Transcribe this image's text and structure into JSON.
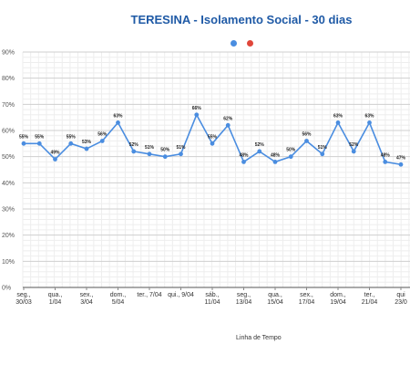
{
  "chart_data": {
    "type": "line",
    "title": "TERESINA - Isolamento Social - 30 dias",
    "xlabel": "Linha de Tempo",
    "ylabel": "",
    "ylim": [
      0,
      90
    ],
    "yticks": [
      "0%",
      "10%",
      "20%",
      "30%",
      "40%",
      "50%",
      "60%",
      "70%",
      "80%",
      "90%"
    ],
    "grid": true,
    "legend_position": "top",
    "series": [
      {
        "color": "#4a8de0",
        "values": [
          55,
          55,
          49,
          55,
          53,
          56,
          63,
          52,
          51,
          50,
          51,
          66,
          55,
          62,
          48,
          52,
          48,
          50,
          56,
          51,
          63,
          52,
          63,
          48,
          47
        ],
        "labels": [
          "55%",
          "55%",
          "49%",
          "55%",
          "53%",
          "56%",
          "63%",
          "52%",
          "51%",
          "50%",
          "51%",
          "66%",
          "55%",
          "62%",
          "48%",
          "52%",
          "48%",
          "50%",
          "56%",
          "51%",
          "63%",
          "52%",
          "63%",
          "48%",
          "47%"
        ]
      }
    ],
    "legend_colors": [
      "#4a8de0",
      "#e0463a"
    ],
    "x_tick_labels": [
      {
        "index": 0,
        "line1": "seg.,",
        "line2": "30/03"
      },
      {
        "index": 2,
        "line1": "qua.,",
        "line2": "1/04"
      },
      {
        "index": 4,
        "line1": "sex.,",
        "line2": "3/04"
      },
      {
        "index": 6,
        "line1": "dom.,",
        "line2": "5/04"
      },
      {
        "index": 8,
        "line1": "ter., 7/04",
        "line2": ""
      },
      {
        "index": 10,
        "line1": "qui., 9/04",
        "line2": ""
      },
      {
        "index": 12,
        "line1": "sáb.,",
        "line2": "11/04"
      },
      {
        "index": 14,
        "line1": "seg.,",
        "line2": "13/04"
      },
      {
        "index": 16,
        "line1": "qua.,",
        "line2": "15/04"
      },
      {
        "index": 18,
        "line1": "sex.,",
        "line2": "17/04"
      },
      {
        "index": 20,
        "line1": "dom.,",
        "line2": "19/04"
      },
      {
        "index": 22,
        "line1": "ter.,",
        "line2": "21/04"
      },
      {
        "index": 24,
        "line1": "qui",
        "line2": "23/0"
      }
    ]
  }
}
